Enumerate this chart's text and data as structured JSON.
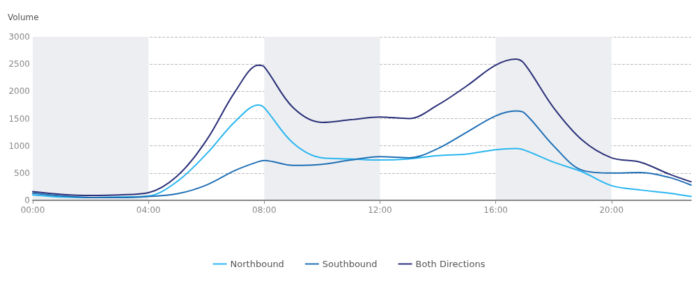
{
  "chart_data": {
    "type": "line",
    "ylabel": "Volume",
    "xlim": [
      0,
      22.75
    ],
    "ylim": [
      0,
      3000
    ],
    "xticks": [
      {
        "value": 0,
        "label": "00:00"
      },
      {
        "value": 4,
        "label": "04:00"
      },
      {
        "value": 8,
        "label": "08:00"
      },
      {
        "value": 12,
        "label": "12:00"
      },
      {
        "value": 16,
        "label": "16:00"
      },
      {
        "value": 20,
        "label": "20:00"
      }
    ],
    "yticks": [
      0,
      500,
      1000,
      1500,
      2000,
      2500,
      3000
    ],
    "grid": "y",
    "legend": "bottom",
    "marker": "none",
    "line_style": "solid",
    "bands": [
      {
        "axis": "x",
        "from": 0,
        "to": 4,
        "color": "#eceef1"
      },
      {
        "axis": "x",
        "from": 8,
        "to": 12,
        "color": "#eceef1"
      },
      {
        "axis": "x",
        "from": 16,
        "to": 20,
        "color": "#eceef1"
      }
    ],
    "x": [
      0,
      1,
      2,
      3,
      4,
      5,
      6,
      7,
      7.8,
      8,
      9,
      10,
      11,
      12,
      13,
      14,
      15,
      16,
      16.7,
      17,
      18,
      19,
      20,
      21,
      22,
      22.75
    ],
    "series": [
      {
        "name": "Northbound",
        "color": "#29b6f0",
        "values": [
          100,
          60,
          50,
          60,
          80,
          350,
          850,
          1450,
          1750,
          1700,
          1050,
          780,
          760,
          740,
          760,
          820,
          850,
          930,
          950,
          920,
          700,
          520,
          270,
          190,
          130,
          70
        ]
      },
      {
        "name": "Southbound",
        "color": "#1f6fb5",
        "values": [
          130,
          80,
          50,
          50,
          70,
          120,
          280,
          550,
          710,
          730,
          640,
          660,
          740,
          800,
          780,
          950,
          1250,
          1550,
          1640,
          1600,
          1000,
          550,
          500,
          510,
          420,
          280
        ]
      },
      {
        "name": "Both Directions",
        "color": "#2a2f78",
        "values": [
          160,
          110,
          90,
          100,
          140,
          450,
          1100,
          2000,
          2480,
          2450,
          1700,
          1430,
          1480,
          1530,
          1500,
          1750,
          2100,
          2480,
          2590,
          2500,
          1700,
          1100,
          780,
          700,
          480,
          340
        ]
      }
    ]
  }
}
